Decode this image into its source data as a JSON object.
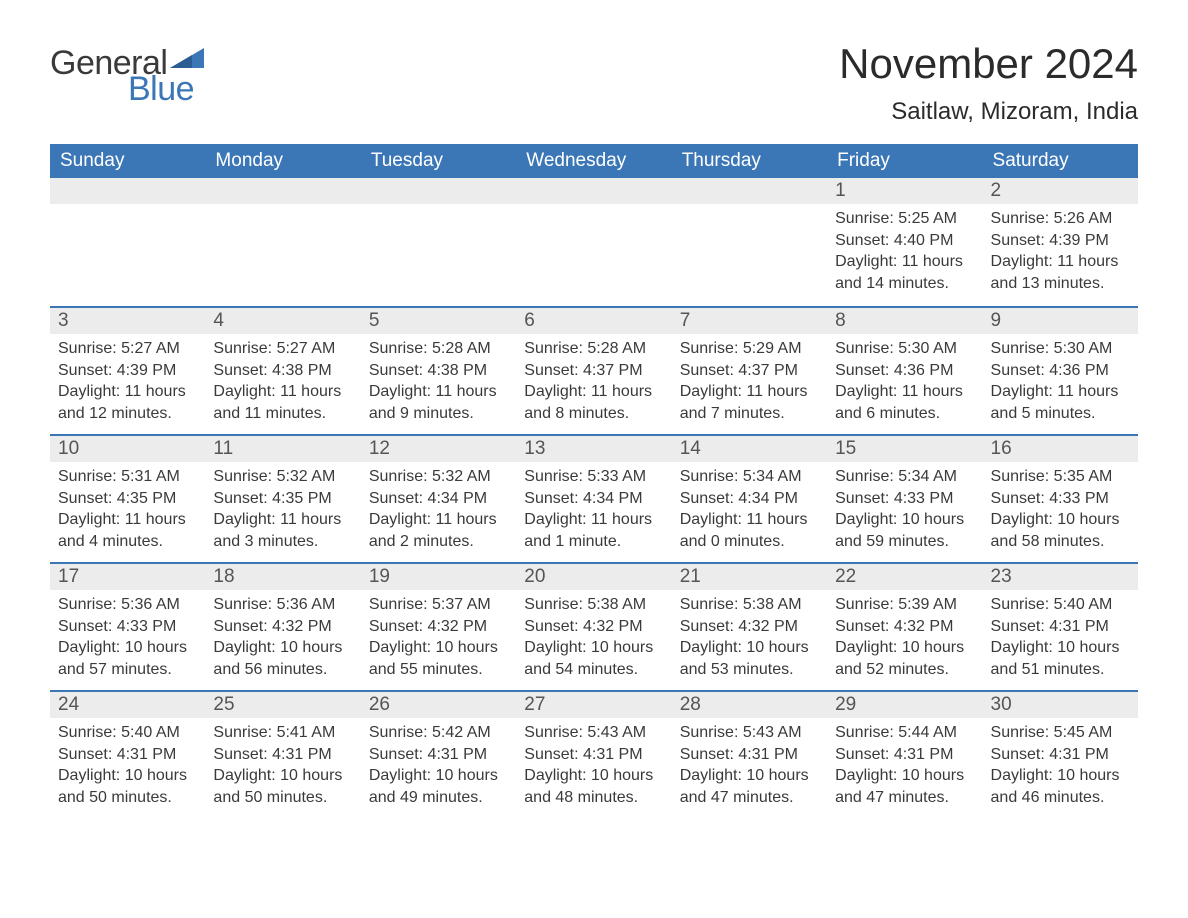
{
  "logo": {
    "word1": "General",
    "word2": "Blue",
    "icon_color": "#3b77b6"
  },
  "title": "November 2024",
  "location": "Saitlaw, Mizoram, India",
  "colors": {
    "header_bg": "#3b77b6",
    "header_text": "#ffffff",
    "row_border": "#3b77b6",
    "daynum_bg": "#ececec",
    "page_bg": "#ffffff",
    "body_text": "#3a3a3a"
  },
  "fonts": {
    "title_size_pt": 32,
    "location_size_pt": 18,
    "header_size_pt": 14,
    "body_size_pt": 12
  },
  "weekdays": [
    "Sunday",
    "Monday",
    "Tuesday",
    "Wednesday",
    "Thursday",
    "Friday",
    "Saturday"
  ],
  "layout": {
    "columns": 7,
    "rows": 5,
    "leading_blanks": 5
  },
  "days": [
    {
      "n": 1,
      "sunrise": "5:25 AM",
      "sunset": "4:40 PM",
      "daylight": "11 hours and 14 minutes."
    },
    {
      "n": 2,
      "sunrise": "5:26 AM",
      "sunset": "4:39 PM",
      "daylight": "11 hours and 13 minutes."
    },
    {
      "n": 3,
      "sunrise": "5:27 AM",
      "sunset": "4:39 PM",
      "daylight": "11 hours and 12 minutes."
    },
    {
      "n": 4,
      "sunrise": "5:27 AM",
      "sunset": "4:38 PM",
      "daylight": "11 hours and 11 minutes."
    },
    {
      "n": 5,
      "sunrise": "5:28 AM",
      "sunset": "4:38 PM",
      "daylight": "11 hours and 9 minutes."
    },
    {
      "n": 6,
      "sunrise": "5:28 AM",
      "sunset": "4:37 PM",
      "daylight": "11 hours and 8 minutes."
    },
    {
      "n": 7,
      "sunrise": "5:29 AM",
      "sunset": "4:37 PM",
      "daylight": "11 hours and 7 minutes."
    },
    {
      "n": 8,
      "sunrise": "5:30 AM",
      "sunset": "4:36 PM",
      "daylight": "11 hours and 6 minutes."
    },
    {
      "n": 9,
      "sunrise": "5:30 AM",
      "sunset": "4:36 PM",
      "daylight": "11 hours and 5 minutes."
    },
    {
      "n": 10,
      "sunrise": "5:31 AM",
      "sunset": "4:35 PM",
      "daylight": "11 hours and 4 minutes."
    },
    {
      "n": 11,
      "sunrise": "5:32 AM",
      "sunset": "4:35 PM",
      "daylight": "11 hours and 3 minutes."
    },
    {
      "n": 12,
      "sunrise": "5:32 AM",
      "sunset": "4:34 PM",
      "daylight": "11 hours and 2 minutes."
    },
    {
      "n": 13,
      "sunrise": "5:33 AM",
      "sunset": "4:34 PM",
      "daylight": "11 hours and 1 minute."
    },
    {
      "n": 14,
      "sunrise": "5:34 AM",
      "sunset": "4:34 PM",
      "daylight": "11 hours and 0 minutes."
    },
    {
      "n": 15,
      "sunrise": "5:34 AM",
      "sunset": "4:33 PM",
      "daylight": "10 hours and 59 minutes."
    },
    {
      "n": 16,
      "sunrise": "5:35 AM",
      "sunset": "4:33 PM",
      "daylight": "10 hours and 58 minutes."
    },
    {
      "n": 17,
      "sunrise": "5:36 AM",
      "sunset": "4:33 PM",
      "daylight": "10 hours and 57 minutes."
    },
    {
      "n": 18,
      "sunrise": "5:36 AM",
      "sunset": "4:32 PM",
      "daylight": "10 hours and 56 minutes."
    },
    {
      "n": 19,
      "sunrise": "5:37 AM",
      "sunset": "4:32 PM",
      "daylight": "10 hours and 55 minutes."
    },
    {
      "n": 20,
      "sunrise": "5:38 AM",
      "sunset": "4:32 PM",
      "daylight": "10 hours and 54 minutes."
    },
    {
      "n": 21,
      "sunrise": "5:38 AM",
      "sunset": "4:32 PM",
      "daylight": "10 hours and 53 minutes."
    },
    {
      "n": 22,
      "sunrise": "5:39 AM",
      "sunset": "4:32 PM",
      "daylight": "10 hours and 52 minutes."
    },
    {
      "n": 23,
      "sunrise": "5:40 AM",
      "sunset": "4:31 PM",
      "daylight": "10 hours and 51 minutes."
    },
    {
      "n": 24,
      "sunrise": "5:40 AM",
      "sunset": "4:31 PM",
      "daylight": "10 hours and 50 minutes."
    },
    {
      "n": 25,
      "sunrise": "5:41 AM",
      "sunset": "4:31 PM",
      "daylight": "10 hours and 50 minutes."
    },
    {
      "n": 26,
      "sunrise": "5:42 AM",
      "sunset": "4:31 PM",
      "daylight": "10 hours and 49 minutes."
    },
    {
      "n": 27,
      "sunrise": "5:43 AM",
      "sunset": "4:31 PM",
      "daylight": "10 hours and 48 minutes."
    },
    {
      "n": 28,
      "sunrise": "5:43 AM",
      "sunset": "4:31 PM",
      "daylight": "10 hours and 47 minutes."
    },
    {
      "n": 29,
      "sunrise": "5:44 AM",
      "sunset": "4:31 PM",
      "daylight": "10 hours and 47 minutes."
    },
    {
      "n": 30,
      "sunrise": "5:45 AM",
      "sunset": "4:31 PM",
      "daylight": "10 hours and 46 minutes."
    }
  ],
  "labels": {
    "sunrise": "Sunrise: ",
    "sunset": "Sunset: ",
    "daylight": "Daylight: "
  }
}
